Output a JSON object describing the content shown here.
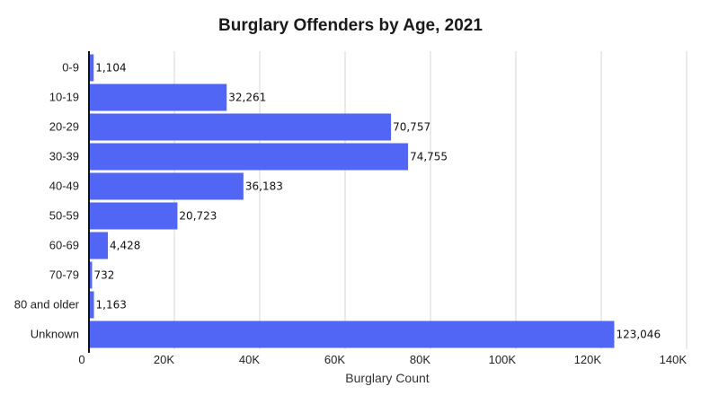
{
  "chart_data": {
    "type": "bar",
    "orientation": "horizontal",
    "title": "Burglary Offenders by Age, 2021",
    "xlabel": "Burglary Count",
    "ylabel": "",
    "categories": [
      "0-9",
      "10-19",
      "20-29",
      "30-39",
      "40-49",
      "50-59",
      "60-69",
      "70-79",
      "80 and older",
      "Unknown"
    ],
    "values": [
      1104,
      32261,
      70757,
      74755,
      36183,
      20723,
      4428,
      732,
      1163,
      123046
    ],
    "data_labels": [
      "1,104",
      "32,261",
      "70,757",
      "74,755",
      "36,183",
      "20,723",
      "4,428",
      "732",
      "1,163",
      "123,046"
    ],
    "xlim": [
      0,
      140000
    ],
    "x_ticks": [
      0,
      20000,
      40000,
      60000,
      80000,
      100000,
      120000,
      140000
    ],
    "x_tick_labels": [
      "0",
      "20K",
      "40K",
      "60K",
      "80K",
      "100K",
      "120K",
      "140K"
    ],
    "grid": true,
    "legend": "none",
    "bar_color": "#5266f5"
  }
}
